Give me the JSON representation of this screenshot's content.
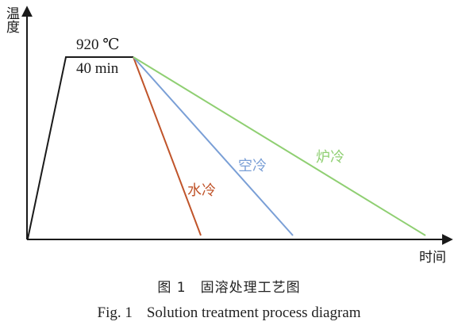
{
  "axes": {
    "y_label": "温度",
    "x_label": "时间"
  },
  "hold": {
    "temperature_label": "920 ℃",
    "time_label": "40 min"
  },
  "cooling": [
    {
      "name": "水冷",
      "color": "#c0542a"
    },
    {
      "name": "空冷",
      "color": "#7a9fd6"
    },
    {
      "name": "炉冷",
      "color": "#8fcf72"
    }
  ],
  "caption": {
    "cn_number": "图 1",
    "cn_title": "固溶处理工艺图",
    "en_number": "Fig. 1",
    "en_title": "Solution treatment process diagram"
  },
  "colors": {
    "axis": "#1a1a1a",
    "profile": "#1a1a1a"
  }
}
